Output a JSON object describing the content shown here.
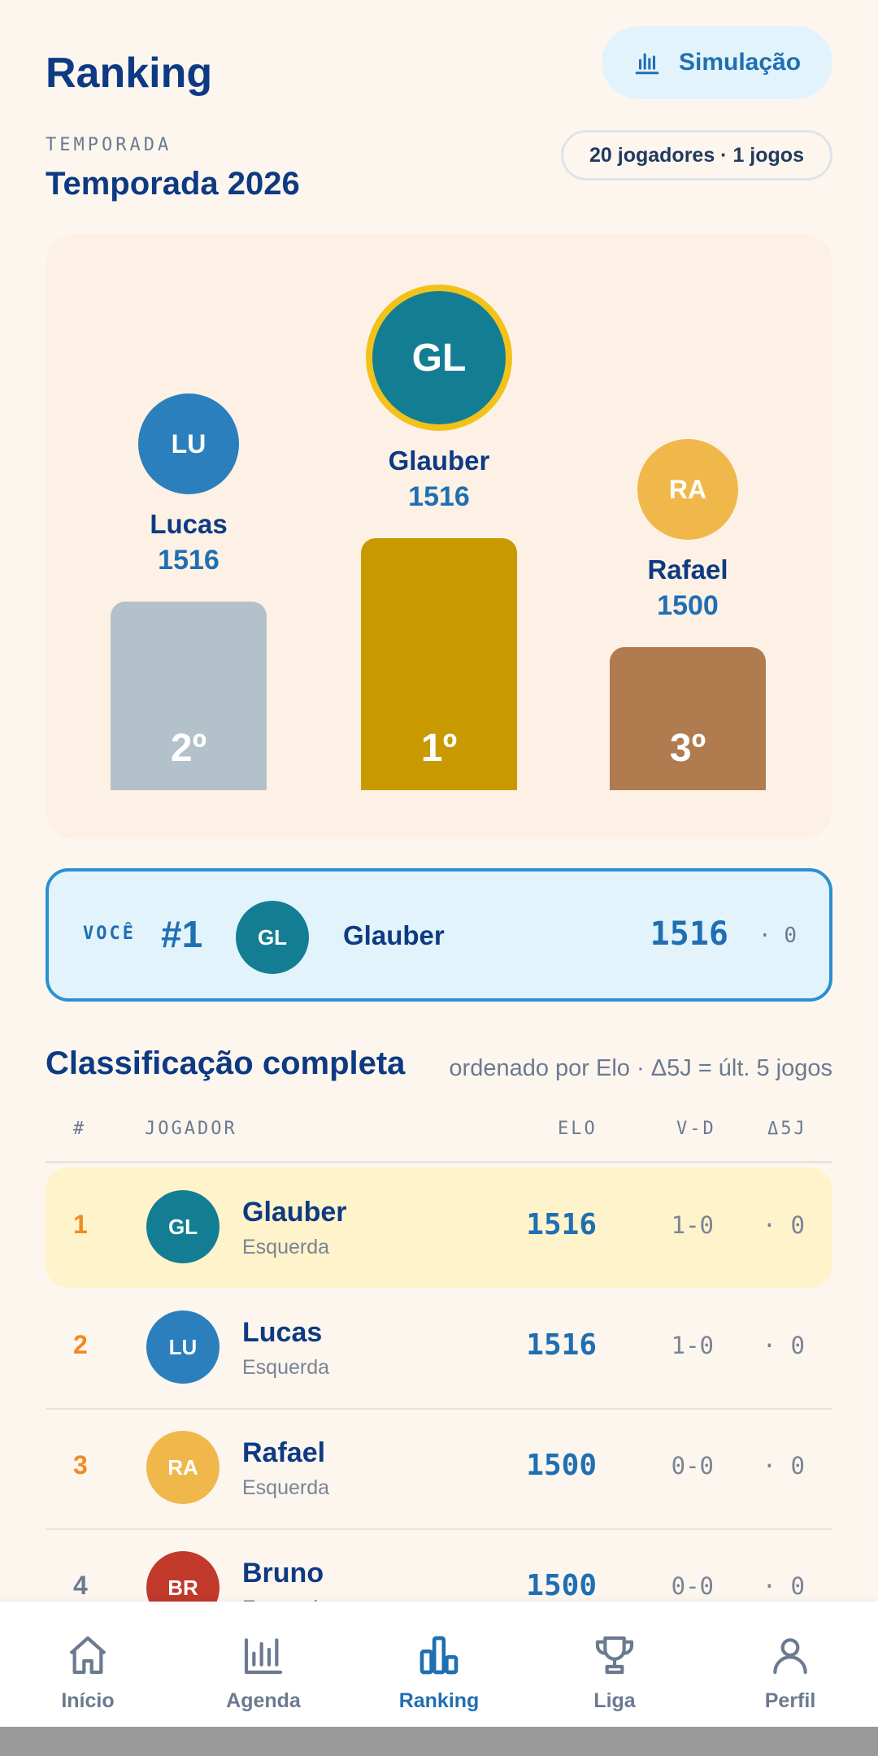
{
  "header": {
    "title": "Ranking",
    "simulation_label": "Simulação",
    "season_label": "TEMPORADA",
    "season_name": "Temporada 2026",
    "meta": "20 jogadores · 1 jogos"
  },
  "podium": {
    "first": {
      "initials": "GL",
      "name": "Glauber",
      "elo": "1516",
      "place": "1º",
      "color": "#137e93"
    },
    "second": {
      "initials": "LU",
      "name": "Lucas",
      "elo": "1516",
      "place": "2º",
      "color": "#2a7fbc"
    },
    "third": {
      "initials": "RA",
      "name": "Rafael",
      "elo": "1500",
      "place": "3º",
      "color": "#f0b84a"
    }
  },
  "you": {
    "label": "VOCÊ",
    "rank": "#1",
    "initials": "GL",
    "name": "Glauber",
    "elo": "1516",
    "delta": "· 0"
  },
  "table": {
    "title": "Classificação completa",
    "subtitle": "ordenado por Elo · Δ5J = últ. 5 jogos",
    "headers": {
      "pos": "#",
      "player": "JOGADOR",
      "elo": "ELO",
      "vd": "V-D",
      "delta": "Δ5J"
    },
    "rows": [
      {
        "pos": "1",
        "initials": "GL",
        "name": "Glauber",
        "side": "Esquerda",
        "elo": "1516",
        "vd": "1-0",
        "delta": "· 0",
        "color": "#137e93"
      },
      {
        "pos": "2",
        "initials": "LU",
        "name": "Lucas",
        "side": "Esquerda",
        "elo": "1516",
        "vd": "1-0",
        "delta": "· 0",
        "color": "#2a7fbc"
      },
      {
        "pos": "3",
        "initials": "RA",
        "name": "Rafael",
        "side": "Esquerda",
        "elo": "1500",
        "vd": "0-0",
        "delta": "· 0",
        "color": "#f0b84a"
      },
      {
        "pos": "4",
        "initials": "BR",
        "name": "Bruno",
        "side": "Esquerda",
        "elo": "1500",
        "vd": "0-0",
        "delta": "· 0",
        "color": "#c0392b"
      }
    ]
  },
  "nav": {
    "items": [
      {
        "label": "Início",
        "icon": "home-icon"
      },
      {
        "label": "Agenda",
        "icon": "bar-chart-icon"
      },
      {
        "label": "Ranking",
        "icon": "ranking-icon",
        "active": true
      },
      {
        "label": "Liga",
        "icon": "trophy-icon"
      },
      {
        "label": "Perfil",
        "icon": "user-icon"
      }
    ]
  },
  "colors": {
    "accent": "#1f6fb2",
    "gold": "#c99a00",
    "silver": "#b3c1ca",
    "bronze": "#b07b4f",
    "highlight_row": "#fff3cc"
  }
}
